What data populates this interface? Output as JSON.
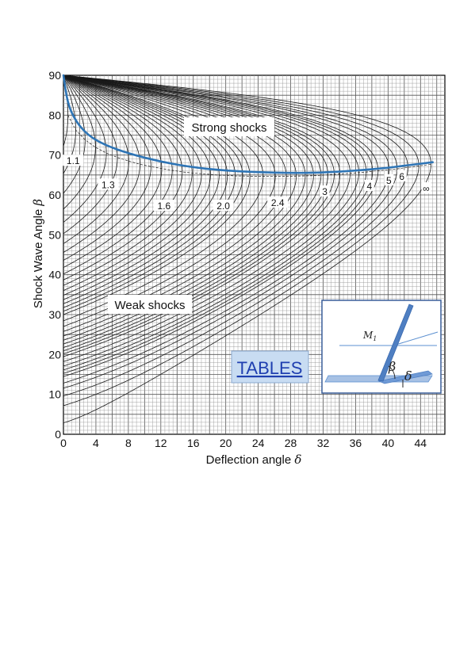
{
  "chart_data": {
    "type": "line",
    "xlabel": "Deflection angle",
    "xlabel_symbol": "δ",
    "ylabel": "Shock Wave Angle",
    "ylabel_symbol": "β",
    "xlim": [
      0,
      47
    ],
    "ylim": [
      0,
      90
    ],
    "xticks": [
      "0",
      "4",
      "8",
      "12",
      "16",
      "20",
      "24",
      "28",
      "32",
      "36",
      "40",
      "44"
    ],
    "yticks": [
      "0",
      "10",
      "20",
      "30",
      "40",
      "50",
      "60",
      "70",
      "80",
      "90"
    ],
    "grid": true,
    "mach_labels": [
      {
        "text": "1.1",
        "x": 1.2,
        "y": 68.5
      },
      {
        "text": "1.3",
        "x": 5.5,
        "y": 62.5
      },
      {
        "text": "1.6",
        "x": 12.4,
        "y": 57.2
      },
      {
        "text": "2.0",
        "x": 19.7,
        "y": 57.2
      },
      {
        "text": "2.4",
        "x": 26.4,
        "y": 58.0
      },
      {
        "text": "3",
        "x": 32.2,
        "y": 60.8
      },
      {
        "text": "4",
        "x": 37.7,
        "y": 62.2
      },
      {
        "text": "5",
        "x": 40.1,
        "y": 63.6
      },
      {
        "text": "6",
        "x": 41.7,
        "y": 64.6
      },
      {
        "text": "∞",
        "x": 44.7,
        "y": 61.6
      }
    ],
    "sonic_line": [
      [
        0,
        90
      ],
      [
        0.5,
        83
      ],
      [
        1.5,
        78.5
      ],
      [
        3,
        75
      ],
      [
        5,
        72.6
      ],
      [
        8,
        70.4
      ],
      [
        12,
        68.3
      ],
      [
        16,
        66.9
      ],
      [
        20,
        66.1
      ],
      [
        24,
        65.7
      ],
      [
        28,
        65.5
      ],
      [
        32,
        65.6
      ],
      [
        36,
        66.1
      ],
      [
        40,
        66.8
      ],
      [
        43,
        67.6
      ],
      [
        45.5,
        68.2
      ]
    ],
    "sonic_line_color": "#2e75b6"
  },
  "regions": {
    "strong": "Strong shocks",
    "weak": "Weak shocks"
  },
  "tables_button": "TABLES",
  "inset": {
    "mach_label": "M",
    "mach_sub": "1",
    "beta": "β",
    "delta": "δ"
  }
}
